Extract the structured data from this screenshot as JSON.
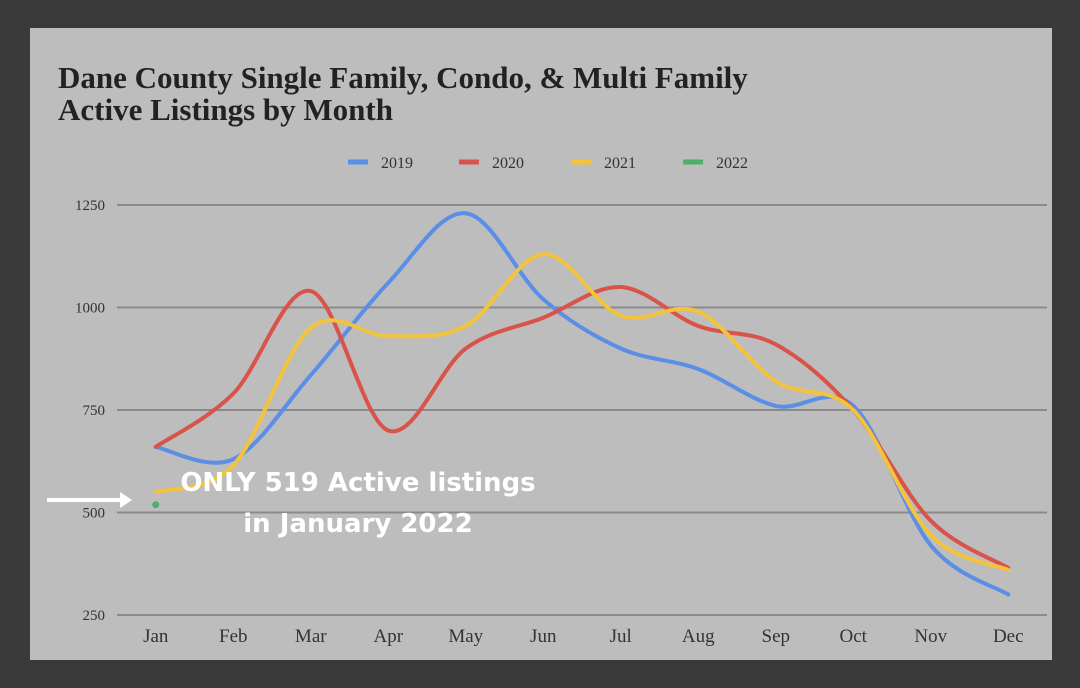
{
  "chart_data": {
    "type": "line",
    "title": [
      "Dane County Single Family, Condo, & Multi Family",
      "Active Listings by Month"
    ],
    "categories": [
      "Jan",
      "Feb",
      "Mar",
      "Apr",
      "May",
      "Jun",
      "Jul",
      "Aug",
      "Sep",
      "Oct",
      "Nov",
      "Dec"
    ],
    "series": [
      {
        "name": "2019",
        "color": "#5b8ee6",
        "values": [
          660,
          630,
          835,
          1060,
          1230,
          1020,
          900,
          850,
          760,
          760,
          420,
          300
        ]
      },
      {
        "name": "2020",
        "color": "#d9534a",
        "values": [
          660,
          790,
          1040,
          700,
          900,
          975,
          1050,
          955,
          910,
          750,
          480,
          365
        ]
      },
      {
        "name": "2021",
        "color": "#f2c43d",
        "values": [
          550,
          615,
          950,
          930,
          955,
          1130,
          980,
          990,
          820,
          750,
          445,
          360
        ]
      },
      {
        "name": "2022",
        "color": "#4caf6a",
        "values": [
          519,
          null,
          null,
          null,
          null,
          null,
          null,
          null,
          null,
          null,
          null,
          null
        ]
      }
    ],
    "ylim": [
      250,
      1250
    ],
    "yticks": [
      250,
      500,
      750,
      1000,
      1250
    ],
    "grid": true,
    "legend": "top",
    "annotation": [
      "ONLY 519 Active listings",
      "in January 2022"
    ]
  }
}
